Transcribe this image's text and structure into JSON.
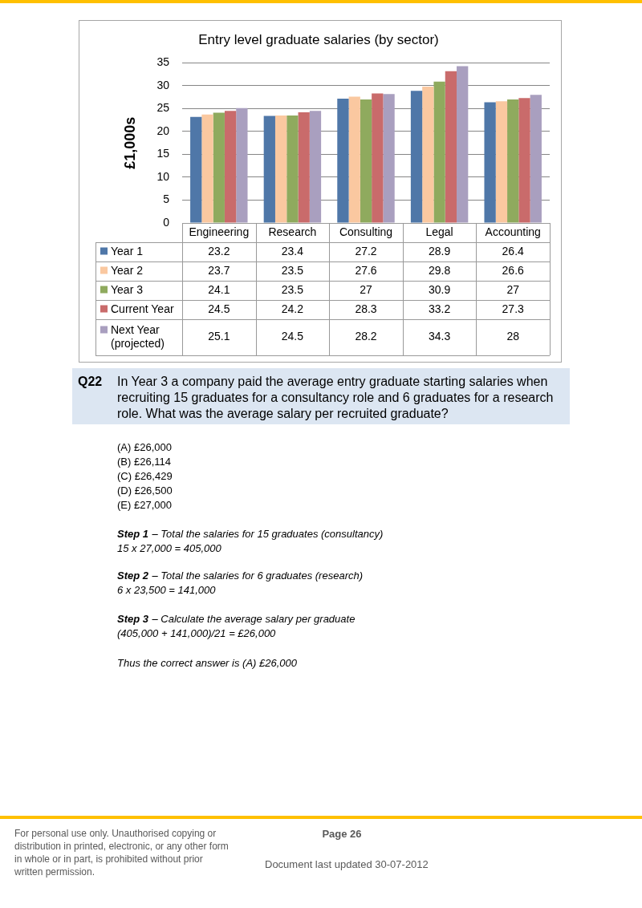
{
  "chart_data": {
    "type": "bar",
    "title": "Entry level graduate salaries (by sector)",
    "ylabel": "£1,000s",
    "categories": [
      "Engineering",
      "Research",
      "Consulting",
      "Legal",
      "Accounting"
    ],
    "series": [
      {
        "name": "Year 1",
        "color": "#4f77a8",
        "values": [
          23.2,
          23.4,
          27.2,
          28.9,
          26.4
        ]
      },
      {
        "name": "Year 2",
        "color": "#fac8a0",
        "values": [
          23.7,
          23.5,
          27.6,
          29.8,
          26.6
        ]
      },
      {
        "name": "Year 3",
        "color": "#8faa5e",
        "values": [
          24.1,
          23.5,
          27,
          30.9,
          27
        ]
      },
      {
        "name": "Current Year",
        "color": "#c96b6b",
        "values": [
          24.5,
          24.2,
          28.3,
          33.2,
          27.3
        ]
      },
      {
        "name": "Next Year (projected)",
        "color": "#a99fbf",
        "values": [
          25.1,
          24.5,
          28.2,
          34.3,
          28
        ]
      }
    ],
    "ylim": [
      0,
      35
    ],
    "yticks": [
      0,
      5,
      10,
      15,
      20,
      25,
      30,
      35
    ],
    "grid": "y",
    "legend": "bottom",
    "data_labels": true,
    "annotations": [
      "Q22",
      "In Year 3 a company paid the average entry graduate starting salaries when recruiting 15 graduates for a consultancy role and 6 graduates for a research role. What was the average salary per recruited graduate?",
      "(A) £26,000",
      "(B) £26,114",
      "(C) £26,429",
      "(D) £26,500",
      "(E) £27,000",
      "Step 1",
      "– Total the salaries for 15 graduates (consultancy)",
      "15 x 27,000 = 405,000",
      "Step 2",
      "– Total the salaries for 6 graduates (research)",
      "6 x 23,500 = 141,000",
      "Step 3",
      "– Calculate the average salary per graduate",
      "(405,000 + 141,000)/21 = £26,000",
      "Thus the correct answer is (A) £26,000",
      "For personal use only. Unauthorised copying or distribution in printed, electronic, or any other form in whole or in part, is prohibited without prior written permission.",
      "Page 26",
      "Document last updated 30-07-2012"
    ]
  }
}
